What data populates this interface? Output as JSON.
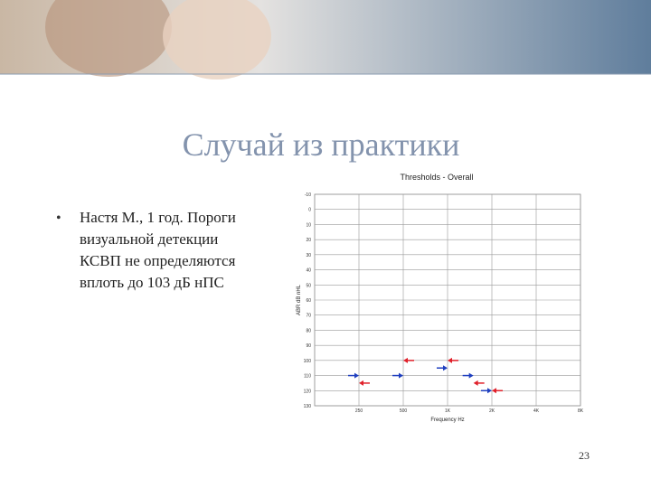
{
  "slide": {
    "title": "Случай из практики",
    "bullet_lines": [
      "Настя М., 1 год. Пороги",
      "визуальной детекции",
      "КСВП не определяются",
      "вплоть до 103 дБ нПС"
    ],
    "page_number": "23"
  },
  "chart_data": {
    "type": "arrows",
    "title": "Thresholds - Overall",
    "x_label": "Frequency Hz",
    "y_label": "ABR dB nHL",
    "xscale": "log",
    "xlim": [
      125,
      8000
    ],
    "xticks": [
      250,
      500,
      {
        "value": 1000,
        "label": "1K"
      },
      {
        "value": 2000,
        "label": "2K"
      },
      {
        "value": 4000,
        "label": "4K"
      },
      {
        "value": 8000,
        "label": "8K"
      }
    ],
    "ylim": [
      -10,
      130
    ],
    "y_inverted": true,
    "yticks": [
      -10,
      0,
      10,
      20,
      30,
      40,
      50,
      60,
      70,
      80,
      90,
      100,
      110,
      120,
      130
    ],
    "grid": true,
    "series": [
      {
        "color": "#1f3fbf",
        "direction": "right",
        "x": [
          250,
          500,
          1000,
          1500,
          2000
        ],
        "values": [
          110,
          110,
          105,
          110,
          120
        ]
      },
      {
        "color": "#e0202a",
        "direction": "left",
        "x": [
          250,
          500,
          1000,
          1500,
          2000
        ],
        "values": [
          115,
          100,
          100,
          115,
          120
        ]
      }
    ]
  }
}
